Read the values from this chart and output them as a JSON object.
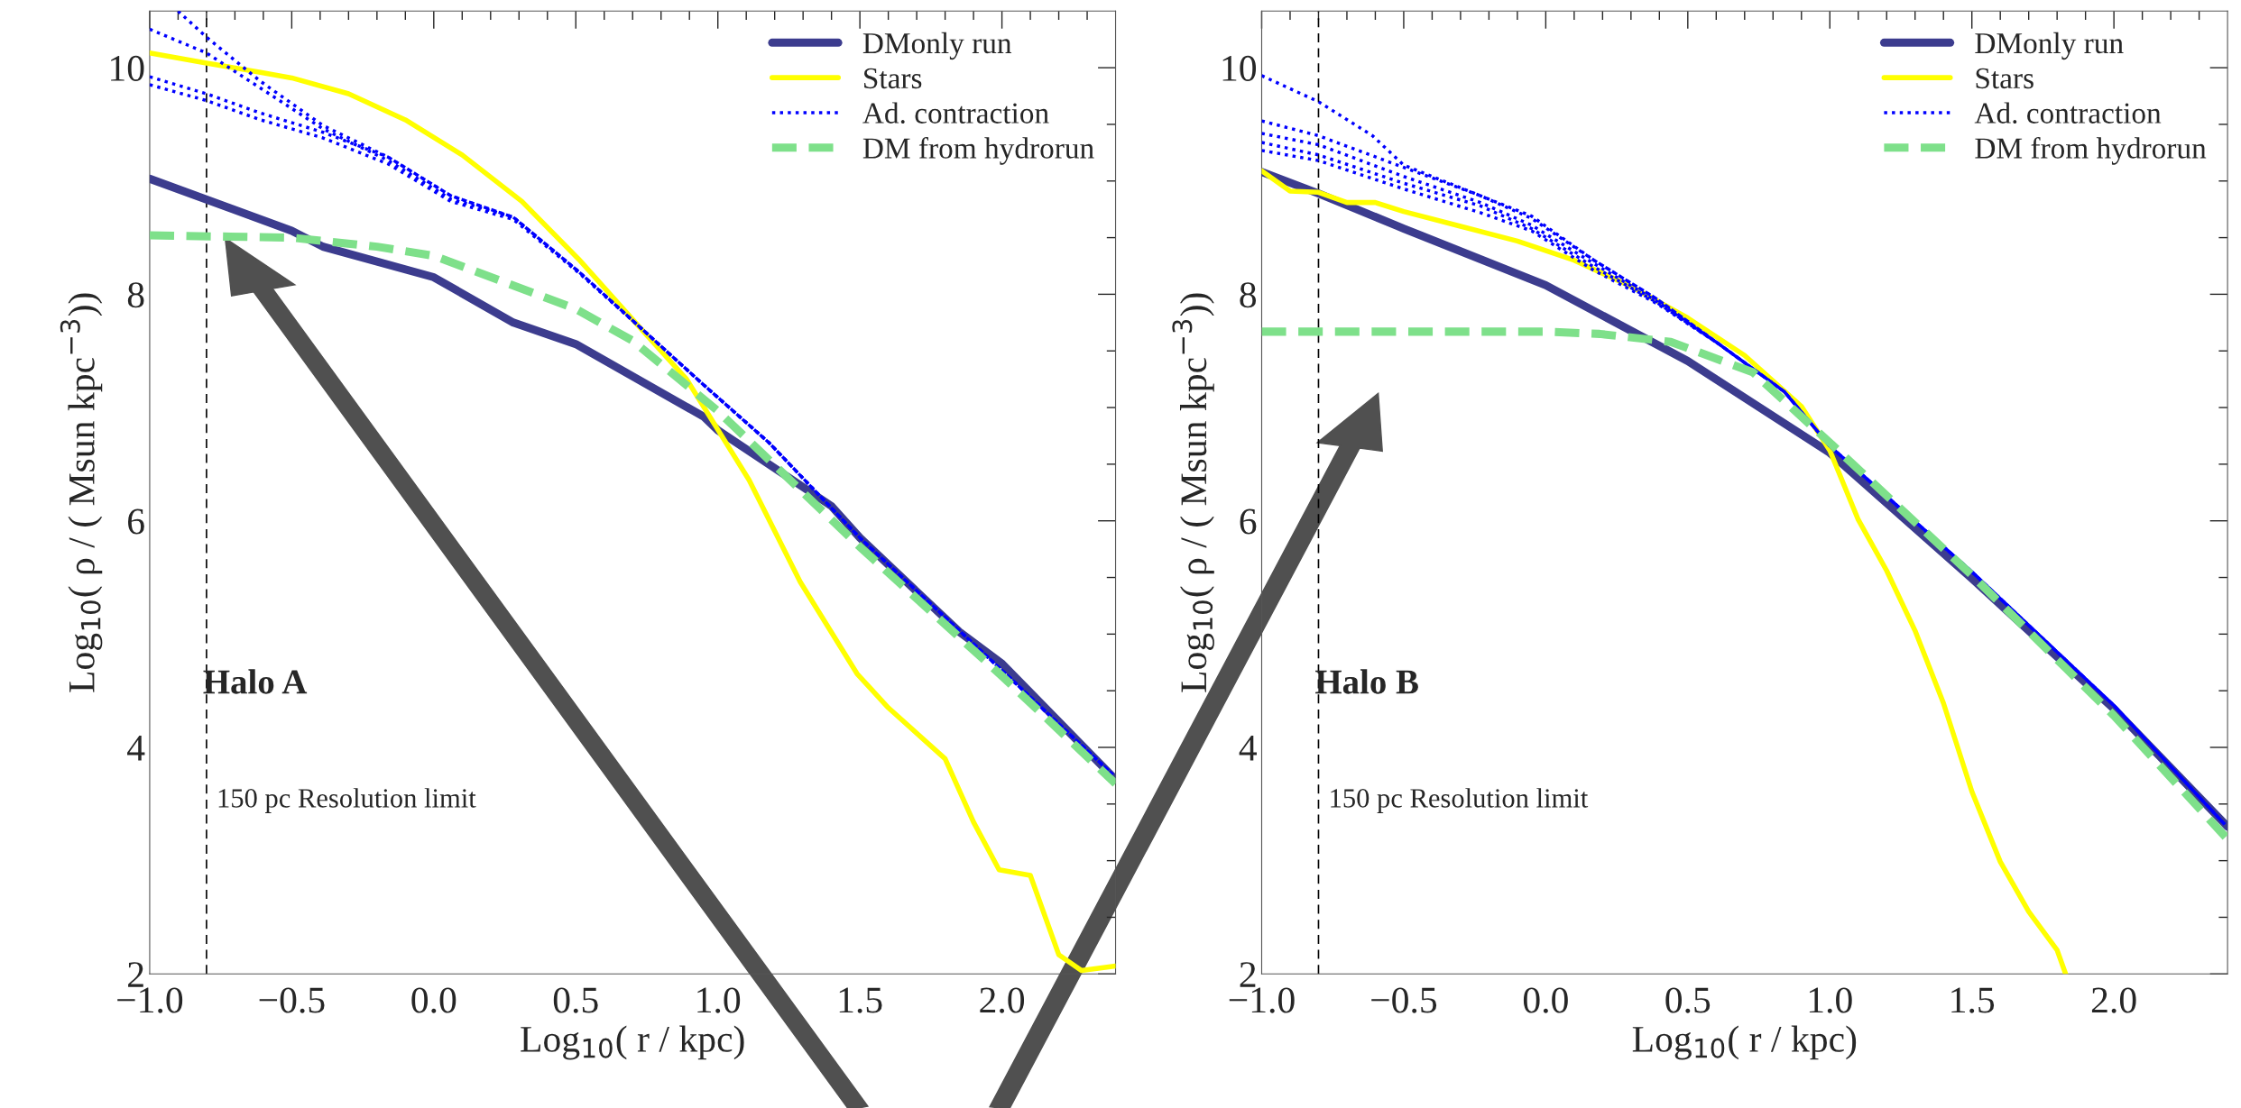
{
  "chart_data": [
    {
      "type": "line",
      "xlabel": "Log$_{10}$( r / kpc)",
      "ylabel": "Log$_{10}$( ρ / ( Msun kpc$^{−3}$))",
      "xlim": [
        -1.0,
        2.4
      ],
      "ylim": [
        2,
        10.5
      ],
      "xticks": [
        {
          "value": -1.0,
          "label": "−1.0"
        },
        {
          "value": -0.9,
          "label": null
        },
        {
          "value": -0.8,
          "label": null
        },
        {
          "value": -0.7,
          "label": null
        },
        {
          "value": -0.6,
          "label": null
        },
        {
          "value": -0.5,
          "label": "−0.5"
        },
        {
          "value": -0.4,
          "label": null
        },
        {
          "value": -0.3,
          "label": null
        },
        {
          "value": -0.2,
          "label": null
        },
        {
          "value": -0.1,
          "label": null
        },
        {
          "value": 0.0,
          "label": "0.0"
        },
        {
          "value": 0.1,
          "label": null
        },
        {
          "value": 0.2,
          "label": null
        },
        {
          "value": 0.3,
          "label": null
        },
        {
          "value": 0.4,
          "label": null
        },
        {
          "value": 0.5,
          "label": "0.5"
        },
        {
          "value": 0.6,
          "label": null
        },
        {
          "value": 0.7,
          "label": null
        },
        {
          "value": 0.8,
          "label": null
        },
        {
          "value": 0.9,
          "label": null
        },
        {
          "value": 1.0,
          "label": "1.0"
        },
        {
          "value": 1.1,
          "label": null
        },
        {
          "value": 1.2,
          "label": null
        },
        {
          "value": 1.3,
          "label": null
        },
        {
          "value": 1.4,
          "label": null
        },
        {
          "value": 1.5,
          "label": "1.5"
        },
        {
          "value": 1.6,
          "label": null
        },
        {
          "value": 1.7,
          "label": null
        },
        {
          "value": 1.8,
          "label": null
        },
        {
          "value": 1.9,
          "label": null
        },
        {
          "value": 2.0,
          "label": "2.0"
        },
        {
          "value": 2.1,
          "label": null
        },
        {
          "value": 2.2,
          "label": null
        },
        {
          "value": 2.3,
          "label": null
        }
      ],
      "yticks": [
        2,
        {
          "value": 2.5,
          "label": null
        },
        {
          "value": 3,
          "label": null
        },
        {
          "value": 3.5,
          "label": null
        },
        4,
        {
          "value": 4.5,
          "label": null
        },
        {
          "value": 5,
          "label": null
        },
        {
          "value": 5.5,
          "label": null
        },
        6,
        {
          "value": 6.5,
          "label": null
        },
        {
          "value": 7,
          "label": null
        },
        {
          "value": 7.5,
          "label": null
        },
        8,
        {
          "value": 8.5,
          "label": null
        },
        {
          "value": 9,
          "label": null
        },
        {
          "value": 9.5,
          "label": null
        },
        10
      ],
      "grid": false,
      "legend": "top right",
      "annotations": [
        "Halo A"
      ],
      "ref_lines": [
        {
          "axis": "x",
          "value": -0.8,
          "label": "150 pc Resolution limit",
          "color": "#000000",
          "line_style": "dashed"
        }
      ],
      "series": [
        {
          "name": "DMonly run",
          "color": "#3c3c8e",
          "line_style": "solid",
          "x": [
            -1.0,
            -0.5,
            -0.39,
            0.0,
            0.28,
            0.5,
            0.95,
            1.0,
            1.4,
            1.5,
            1.85,
            2.0,
            2.39
          ],
          "values": [
            9.02,
            8.56,
            8.42,
            8.15,
            7.75,
            7.56,
            6.92,
            6.8,
            6.13,
            5.85,
            5.02,
            4.74,
            3.74
          ]
        },
        {
          "name": "Stars",
          "color": "#ffff00",
          "line_style": "solid",
          "x": [
            -1.0,
            -0.8,
            -0.61,
            -0.5,
            -0.3,
            -0.1,
            0.1,
            0.31,
            0.51,
            0.71,
            0.89,
            1.11,
            1.29,
            1.49,
            1.6,
            1.8,
            1.9,
            1.99,
            2.1,
            2.2,
            2.28,
            2.4
          ],
          "values": [
            10.13,
            10.04,
            9.96,
            9.91,
            9.77,
            9.54,
            9.23,
            8.82,
            8.31,
            7.75,
            7.25,
            6.36,
            5.46,
            4.65,
            4.35,
            3.9,
            3.34,
            2.92,
            2.87,
            2.17,
            2.03,
            2.07
          ]
        },
        {
          "name": "Ad. contraction",
          "color": "#0000ff",
          "line_style": "dotted",
          "x": [
            -0.9,
            -0.8,
            -0.61,
            -0.39,
            -0.16,
            0.06,
            0.28,
            0.51,
            0.73,
            0.95,
            1.18,
            1.5,
            2.0,
            2.39
          ],
          "values": [
            10.5,
            10.27,
            9.88,
            9.49,
            9.21,
            8.87,
            8.68,
            8.2,
            7.7,
            7.2,
            6.69,
            5.85,
            4.68,
            3.76
          ]
        },
        {
          "color": "#0000ff",
          "line_style": "dotted",
          "x": [
            -1.0,
            -0.8,
            -0.61,
            -0.39,
            -0.16,
            0.06,
            0.28,
            0.51,
            0.73,
            0.95,
            1.18,
            1.5,
            2.0,
            2.39
          ],
          "values": [
            10.34,
            10.13,
            9.82,
            9.46,
            9.18,
            8.84,
            8.68,
            8.2,
            7.7,
            7.2,
            6.69,
            5.85,
            4.68,
            3.76
          ]
        },
        {
          "color": "#0000ff",
          "line_style": "dotted",
          "x": [
            -1.0,
            -0.8,
            -0.61,
            -0.39,
            -0.16,
            0.06,
            0.28,
            0.51,
            0.73,
            0.95,
            1.18,
            1.5,
            2.0,
            2.39
          ],
          "values": [
            9.92,
            9.77,
            9.6,
            9.43,
            9.21,
            8.87,
            8.68,
            8.2,
            7.7,
            7.2,
            6.69,
            5.85,
            4.68,
            3.76
          ]
        },
        {
          "color": "#0000ff",
          "line_style": "dotted",
          "x": [
            -1.0,
            -0.8,
            -0.61,
            -0.39,
            -0.16,
            0.06,
            0.28,
            0.51,
            0.73,
            0.95,
            1.18,
            1.5,
            2.0,
            2.39
          ],
          "values": [
            9.85,
            9.71,
            9.54,
            9.38,
            9.15,
            8.82,
            8.66,
            8.19,
            7.7,
            7.2,
            6.69,
            5.85,
            4.68,
            3.76
          ]
        },
        {
          "name": "DM from hydrorun",
          "color": "#7ee08a",
          "line_style": "dashed",
          "x": [
            -1.0,
            -0.5,
            -0.2,
            0.0,
            0.5,
            0.7,
            1.0,
            1.5,
            2.0,
            2.4
          ],
          "values": [
            8.52,
            8.5,
            8.42,
            8.34,
            7.87,
            7.59,
            6.97,
            5.77,
            4.63,
            3.68
          ]
        }
      ]
    },
    {
      "type": "line",
      "xlabel": "Log$_{10}$( r / kpc)",
      "ylabel": "Log$_{10}$( ρ / ( Msun kpc$^{−3}$))",
      "xlim": [
        -1.0,
        2.4
      ],
      "ylim": [
        2,
        10.5
      ],
      "xticks": [
        {
          "value": -1.0,
          "label": "−1.0"
        },
        {
          "value": -0.9,
          "label": null
        },
        {
          "value": -0.8,
          "label": null
        },
        {
          "value": -0.7,
          "label": null
        },
        {
          "value": -0.6,
          "label": null
        },
        {
          "value": -0.5,
          "label": "−0.5"
        },
        {
          "value": -0.4,
          "label": null
        },
        {
          "value": -0.3,
          "label": null
        },
        {
          "value": -0.2,
          "label": null
        },
        {
          "value": -0.1,
          "label": null
        },
        {
          "value": 0.0,
          "label": "0.0"
        },
        {
          "value": 0.1,
          "label": null
        },
        {
          "value": 0.2,
          "label": null
        },
        {
          "value": 0.3,
          "label": null
        },
        {
          "value": 0.4,
          "label": null
        },
        {
          "value": 0.5,
          "label": "0.5"
        },
        {
          "value": 0.6,
          "label": null
        },
        {
          "value": 0.7,
          "label": null
        },
        {
          "value": 0.8,
          "label": null
        },
        {
          "value": 0.9,
          "label": null
        },
        {
          "value": 1.0,
          "label": "1.0"
        },
        {
          "value": 1.1,
          "label": null
        },
        {
          "value": 1.2,
          "label": null
        },
        {
          "value": 1.3,
          "label": null
        },
        {
          "value": 1.4,
          "label": null
        },
        {
          "value": 1.5,
          "label": "1.5"
        },
        {
          "value": 1.6,
          "label": null
        },
        {
          "value": 1.7,
          "label": null
        },
        {
          "value": 1.8,
          "label": null
        },
        {
          "value": 1.9,
          "label": null
        },
        {
          "value": 2.0,
          "label": "2.0"
        },
        {
          "value": 2.1,
          "label": null
        },
        {
          "value": 2.2,
          "label": null
        },
        {
          "value": 2.3,
          "label": null
        }
      ],
      "yticks": [
        2,
        {
          "value": 2.5,
          "label": null
        },
        {
          "value": 3,
          "label": null
        },
        {
          "value": 3.5,
          "label": null
        },
        4,
        {
          "value": 4.5,
          "label": null
        },
        {
          "value": 5,
          "label": null
        },
        {
          "value": 5.5,
          "label": null
        },
        6,
        {
          "value": 6.5,
          "label": null
        },
        {
          "value": 7,
          "label": null
        },
        {
          "value": 7.5,
          "label": null
        },
        8,
        {
          "value": 8.5,
          "label": null
        },
        {
          "value": 9,
          "label": null
        },
        {
          "value": 9.5,
          "label": null
        },
        10
      ],
      "grid": false,
      "legend": "top right",
      "annotations": [
        "Halo B"
      ],
      "ref_lines": [
        {
          "axis": "x",
          "value": -0.8,
          "label": "150 pc Resolution limit",
          "color": "#000000",
          "line_style": "dashed"
        }
      ],
      "series": [
        {
          "name": "DMonly run",
          "color": "#3c3c8e",
          "line_style": "solid",
          "x": [
            -1.0,
            -0.8,
            -0.5,
            0.0,
            0.5,
            1.0,
            1.5,
            2.0,
            2.4
          ],
          "values": [
            9.08,
            8.89,
            8.58,
            8.08,
            7.41,
            6.6,
            5.49,
            4.34,
            3.3
          ]
        },
        {
          "name": "Stars",
          "color": "#ffff00",
          "line_style": "solid",
          "x": [
            -1.0,
            -0.9,
            -0.8,
            -0.7,
            -0.6,
            -0.5,
            -0.3,
            -0.1,
            0.1,
            0.3,
            0.5,
            0.7,
            0.9,
            1.0,
            1.1,
            1.2,
            1.3,
            1.4,
            1.5,
            1.6,
            1.7,
            1.8,
            1.83
          ],
          "values": [
            9.09,
            8.91,
            8.9,
            8.81,
            8.81,
            8.73,
            8.6,
            8.47,
            8.3,
            8.07,
            7.79,
            7.46,
            7.01,
            6.62,
            6.01,
            5.56,
            5.03,
            4.39,
            3.61,
            2.99,
            2.55,
            2.21,
            2.0
          ]
        },
        {
          "name": "Ad. contraction",
          "color": "#0000ff",
          "line_style": "dotted",
          "x": [
            -1.0,
            -0.8,
            -0.61,
            -0.5,
            -0.28,
            -0.05,
            0.17,
            0.39,
            0.61,
            0.84,
            1.0,
            1.5,
            2.0,
            2.39
          ],
          "values": [
            9.93,
            9.7,
            9.4,
            9.14,
            8.92,
            8.69,
            8.3,
            7.96,
            7.56,
            7.14,
            6.66,
            5.55,
            4.37,
            3.32
          ]
        },
        {
          "color": "#0000ff",
          "line_style": "dotted",
          "x": [
            -1.0,
            -0.8,
            -0.5,
            -0.23,
            -0.05,
            0.17,
            0.39,
            0.61,
            0.84,
            1.0,
            1.5,
            2.0,
            2.39
          ],
          "values": [
            9.53,
            9.4,
            9.12,
            8.87,
            8.67,
            8.3,
            7.96,
            7.56,
            7.14,
            6.66,
            5.55,
            4.37,
            3.32
          ]
        },
        {
          "color": "#0000ff",
          "line_style": "dotted",
          "x": [
            -1.0,
            -0.8,
            -0.5,
            -0.23,
            -0.05,
            0.17,
            0.39,
            0.61,
            0.84,
            1.0,
            1.5,
            2.0,
            2.39
          ],
          "values": [
            9.42,
            9.32,
            9.04,
            8.81,
            8.61,
            8.27,
            7.94,
            7.56,
            7.14,
            6.66,
            5.55,
            4.37,
            3.32
          ]
        },
        {
          "color": "#0000ff",
          "line_style": "dotted",
          "x": [
            -1.0,
            -0.8,
            -0.5,
            -0.23,
            -0.05,
            0.17,
            0.39,
            0.61,
            0.84,
            1.0,
            1.5,
            2.0,
            2.39
          ],
          "values": [
            9.34,
            9.23,
            8.98,
            8.78,
            8.58,
            8.24,
            7.93,
            7.56,
            7.14,
            6.66,
            5.55,
            4.37,
            3.32
          ]
        },
        {
          "color": "#0000ff",
          "line_style": "dotted",
          "x": [
            -1.0,
            -0.8,
            -0.5,
            -0.23,
            -0.05,
            0.17,
            0.39,
            0.61,
            0.84,
            1.0,
            1.5,
            2.0,
            2.39
          ],
          "values": [
            9.27,
            9.18,
            8.93,
            8.72,
            8.56,
            8.21,
            7.92,
            7.56,
            7.14,
            6.66,
            5.55,
            4.37,
            3.32
          ]
        },
        {
          "name": "DM from hydrorun",
          "color": "#7ee08a",
          "line_style": "dashed",
          "x": [
            -1.0,
            -0.5,
            0.0,
            0.19,
            0.44,
            0.73,
            1.0,
            1.5,
            2.0,
            2.4
          ],
          "values": [
            7.67,
            7.67,
            7.67,
            7.65,
            7.58,
            7.31,
            6.69,
            5.52,
            4.28,
            3.19
          ]
        }
      ]
    }
  ]
}
